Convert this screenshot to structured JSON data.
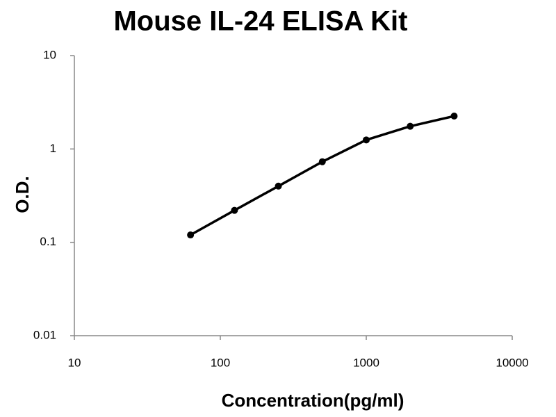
{
  "chart_data": {
    "type": "line",
    "title": "Mouse IL-24 ELISA Kit",
    "x_label": "Concentration(pg/ml)",
    "y_label": "O.D.",
    "x": [
      62.5,
      125,
      250,
      500,
      1000,
      2000,
      4000
    ],
    "series": [
      {
        "color": "#000000",
        "values": [
          0.12,
          0.22,
          0.4,
          0.73,
          1.25,
          1.75,
          2.25
        ]
      }
    ],
    "xlim": [
      10,
      10000
    ],
    "xticks": [
      10,
      100,
      1000,
      10000
    ],
    "ylim": [
      0.01,
      10
    ],
    "yticks": [
      0.01,
      0.1,
      1,
      10
    ],
    "xscale": "log",
    "yscale": "log",
    "grid": false
  }
}
